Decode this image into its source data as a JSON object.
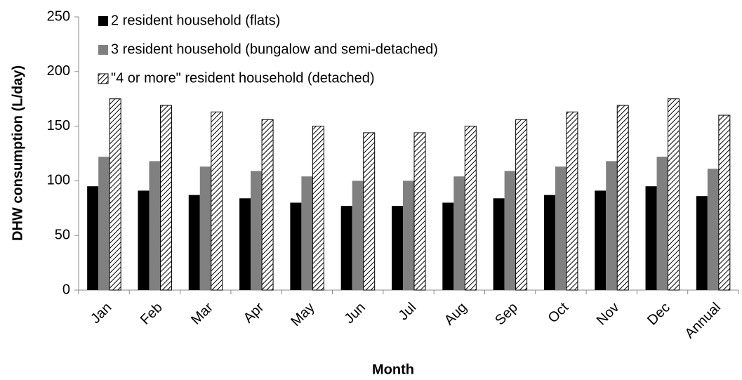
{
  "chart_data": {
    "type": "bar",
    "x_label": "Month",
    "y_label": "DHW consumption (L/day)",
    "categories": [
      "Jan",
      "Feb",
      "Mar",
      "Apr",
      "May",
      "Jun",
      "Jul",
      "Aug",
      "Sep",
      "Oct",
      "Nov",
      "Dec",
      "Annual"
    ],
    "series": [
      {
        "name": "2 resident household (flats)",
        "color": "#000000",
        "values": [
          95,
          91,
          87,
          84,
          80,
          77,
          77,
          80,
          84,
          87,
          91,
          95,
          86
        ]
      },
      {
        "name": "3 resident household (bungalow and semi-detached)",
        "color": "#808080",
        "values": [
          122,
          118,
          113,
          109,
          104,
          100,
          100,
          104,
          109,
          113,
          118,
          122,
          111
        ]
      },
      {
        "name": "\"4 or more\" resident household (detached)",
        "color": "#000000",
        "hatch": true,
        "values": [
          175,
          169,
          163,
          156,
          150,
          144,
          144,
          150,
          156,
          163,
          169,
          175,
          160
        ]
      }
    ],
    "ylim": [
      0,
      250
    ],
    "yticks": [
      0,
      50,
      100,
      150,
      200,
      250
    ],
    "grid": false,
    "legend": "top-left"
  }
}
